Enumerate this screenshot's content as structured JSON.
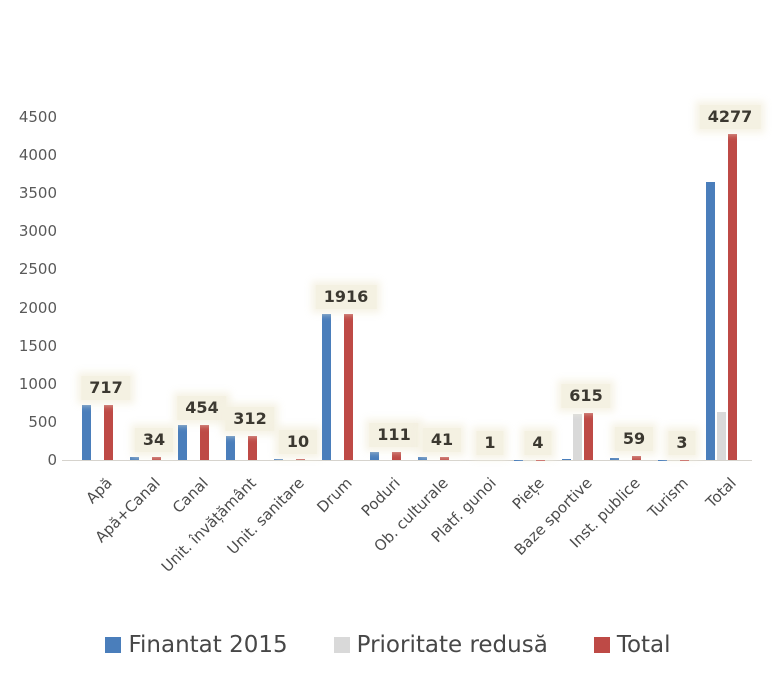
{
  "chart_data": {
    "type": "bar",
    "title": "",
    "xlabel": "",
    "ylabel": "",
    "categories": [
      "Apă",
      "Apă+Canal",
      "Canal",
      "Unit. învățământ",
      "Unit. sanitare",
      "Drum",
      "Poduri",
      "Ob. culturale",
      "Platf. gunoi",
      "Piețe",
      "Baze sportive",
      "Inst. publice",
      "Turism",
      "Total"
    ],
    "series": [
      {
        "name": "Finantat 2015",
        "color": "#4a7ebb",
        "values": [
          717,
          34,
          454,
          312,
          10,
          1916,
          100,
          41,
          1,
          4,
          12,
          30,
          3,
          3645
        ]
      },
      {
        "name": "Prioritate redusă",
        "color": "#d9d9d9",
        "values": [
          0,
          0,
          0,
          0,
          0,
          0,
          0,
          0,
          0,
          0,
          603,
          0,
          0,
          632
        ]
      },
      {
        "name": "Total",
        "color": "#be4a46",
        "values": [
          717,
          34,
          454,
          312,
          10,
          1916,
          111,
          41,
          1,
          4,
          615,
          59,
          3,
          4277
        ]
      }
    ],
    "bar_labels": [
      "717",
      "34",
      "454",
      "312",
      "10",
      "1916",
      "111",
      "41",
      "1",
      "4",
      "615",
      "59",
      "3",
      "4277"
    ],
    "yticks": [
      "0",
      "500",
      "1000",
      "1500",
      "2000",
      "2500",
      "3000",
      "3500",
      "4000",
      "4500"
    ],
    "ylim": [
      0,
      4500
    ],
    "ytick_step": 500,
    "grid": false,
    "legend_position": "bottom"
  }
}
